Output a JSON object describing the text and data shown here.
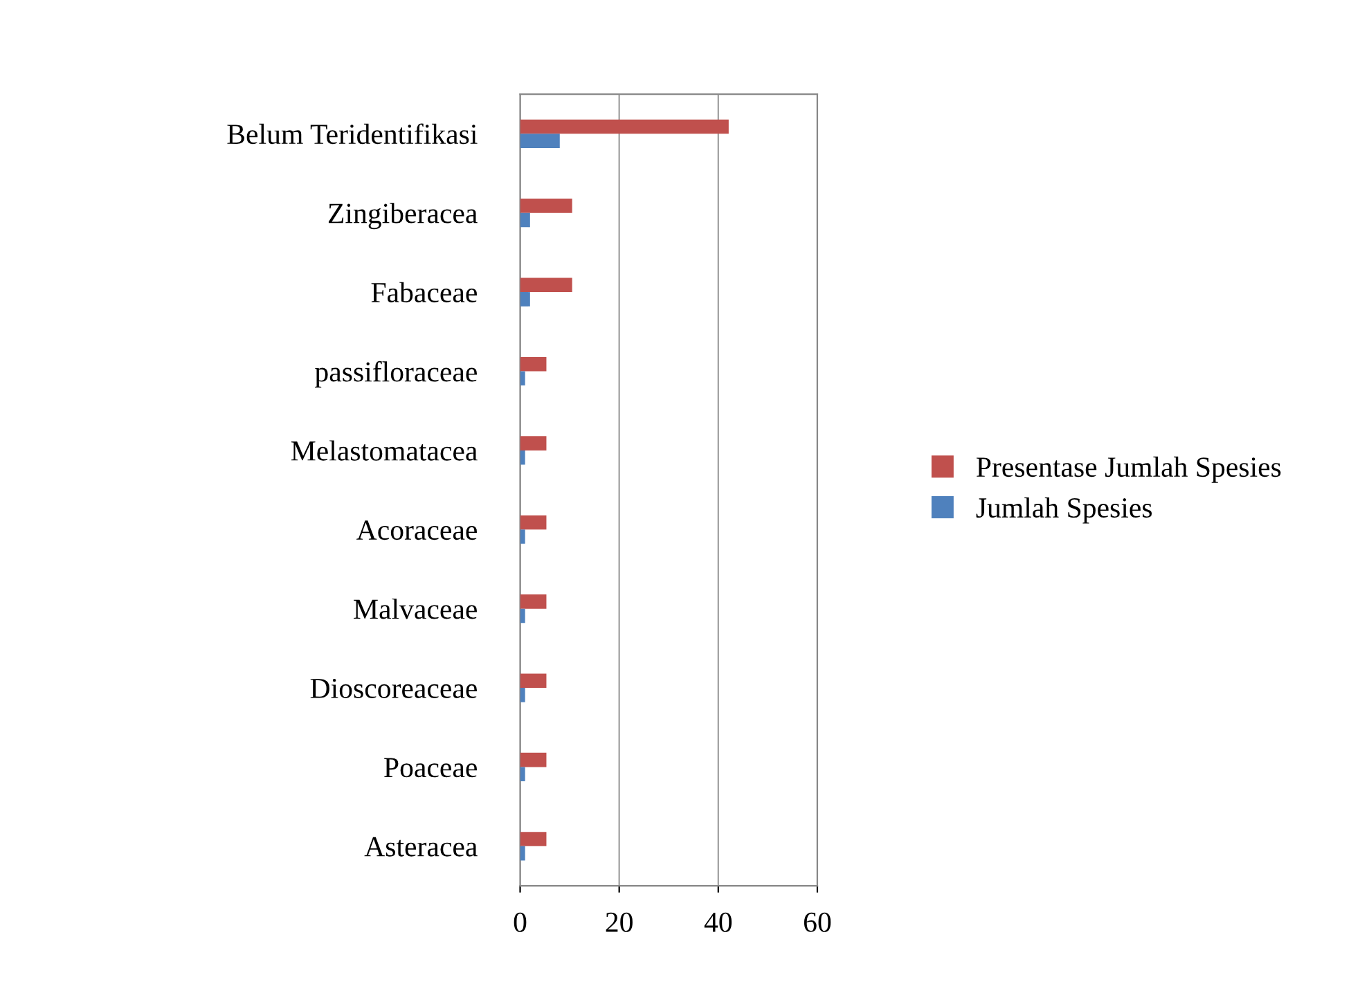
{
  "chart_data": {
    "type": "bar",
    "orientation": "horizontal",
    "categories": [
      "Belum Teridentifikasi",
      "Zingiberacea",
      "Fabaceae",
      "passifloraceae",
      "Melastomatacea",
      "Acoraceae",
      "Malvaceae",
      "Dioscoreaceae",
      "Poaceae",
      "Asteracea"
    ],
    "series": [
      {
        "name": "Presentase Jumlah Spesies",
        "color": "#c0504d",
        "values": [
          42.1,
          10.5,
          10.5,
          5.3,
          5.3,
          5.3,
          5.3,
          5.3,
          5.3,
          5.3
        ]
      },
      {
        "name": "Jumlah Spesies",
        "color": "#4f81bd",
        "values": [
          8,
          2,
          2,
          1,
          1,
          1,
          1,
          1,
          1,
          1
        ]
      }
    ],
    "xlim": [
      0,
      60
    ],
    "xticks": [
      0,
      20,
      40,
      60
    ],
    "grid": "x",
    "legend": "right"
  }
}
